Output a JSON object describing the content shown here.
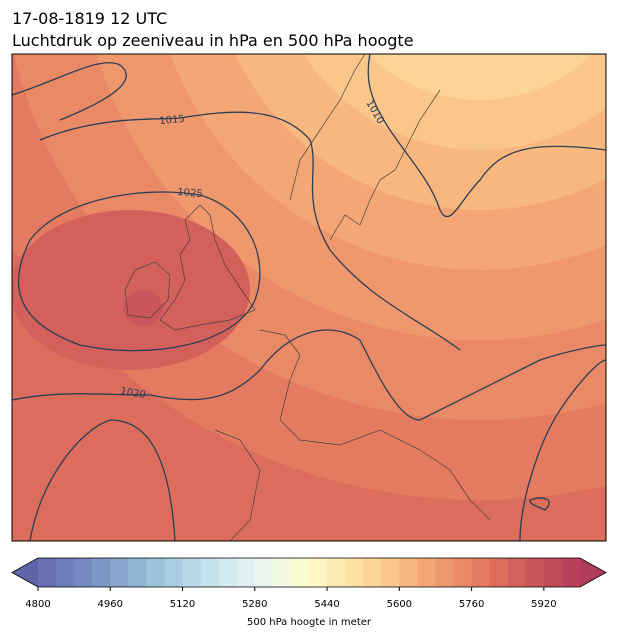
{
  "header": {
    "title_line1": "17-08-1819 12 UTC",
    "title_line2": "Luchtdruk op zeeniveau in hPa en 500 hPa hoogte"
  },
  "map": {
    "isobar_labels": [
      1015,
      1025,
      1010,
      1020
    ]
  },
  "colorbar": {
    "range": [
      4800,
      6000
    ],
    "ticks": [
      4800,
      4960,
      5120,
      5280,
      5440,
      5600,
      5760,
      5920
    ],
    "label": "500 hPa hoogte in meter",
    "under_color": "#5f63a8",
    "over_color": "#b13b5a",
    "colors": [
      "#6a70b3",
      "#6f7cba",
      "#7789c0",
      "#7f97c7",
      "#88a5cd",
      "#92b4d4",
      "#9dc2da",
      "#a9cee2",
      "#b7d8e8",
      "#c5e1ee",
      "#d3e9f2",
      "#e0f0f3",
      "#ebf5ee",
      "#f3f8e1",
      "#fbfbd2",
      "#fdf6c4",
      "#fdebb2",
      "#fde0a2",
      "#fcd495",
      "#fbc689",
      "#f8b77e",
      "#f4a775",
      "#ef986d",
      "#ea8966",
      "#e47b61",
      "#dc6d5d",
      "#d4605b",
      "#cb555b",
      "#c24a5b",
      "#b9405a"
    ]
  }
}
